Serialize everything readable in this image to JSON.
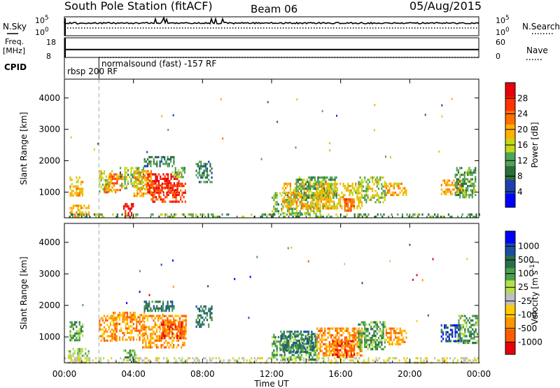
{
  "header": {
    "station": "South Pole Station (fitACF)",
    "beam": "Beam 06",
    "date": "05/Aug/2015"
  },
  "left_labels": {
    "nsky": "N.Sky",
    "freq_line1": "Freq.",
    "freq_line2": "[MHz]",
    "cpid": "CPID"
  },
  "right_labels": {
    "nsearch": "N.Search",
    "nave": "Nave"
  },
  "cpid_labels": {
    "rbsp": "rbsp 200 RF",
    "normalsound": "normalsound (fast) -157 RF"
  },
  "colors": {
    "power_scale": [
      "#0000ff",
      "#1f3fae",
      "#2a6e3a",
      "#4fa35a",
      "#c6d615",
      "#ffb000",
      "#ff7000",
      "#ff3300",
      "#e8000b"
    ],
    "velocity_scale": [
      "#0000ff",
      "#1a4fa0",
      "#2a6e4a",
      "#49a04a",
      "#b5e04a",
      "#bfbfbf",
      "#ffcc00",
      "#ff9500",
      "#ff5a00",
      "#e8000b"
    ]
  },
  "chart_data": [
    {
      "type": "line",
      "panel": "N.Sky / N.Search",
      "y_ticks_left": [
        "10^5",
        "10^0"
      ],
      "y_ticks_right": [
        "10^5",
        "10^0"
      ],
      "yscale": "log"
    },
    {
      "type": "line",
      "panel": "Freq / Nave",
      "y_ticks_left": [
        "18",
        "8"
      ],
      "y_ticks_right": [
        "60",
        "0"
      ],
      "series": [
        {
          "name": "Freq.",
          "x": [
            0,
            24
          ],
          "values": [
            12,
            12
          ]
        },
        {
          "name": "Nave",
          "x": [
            0,
            2,
            24
          ],
          "values": [
            12,
            8,
            8
          ]
        }
      ]
    },
    {
      "type": "heatmap",
      "panel": "power",
      "ylabel": "Slant Range [km]",
      "yticks": [
        1000,
        2000,
        3000,
        4000
      ],
      "ylim": [
        180,
        4600
      ],
      "colorbar_label": "Power [dB]",
      "colorbar_ticks": [
        4,
        8,
        12,
        16,
        20,
        24,
        28
      ],
      "vmin": 0,
      "vmax": 32,
      "patches": [
        {
          "t": [
            0.3,
            1.1
          ],
          "r": [
            900,
            1500
          ],
          "v": 20
        },
        {
          "t": [
            0.3,
            1.4
          ],
          "r": [
            200,
            600
          ],
          "v": 20
        },
        {
          "t": [
            2.0,
            2.8
          ],
          "r": [
            1000,
            1700
          ],
          "v": 14
        },
        {
          "t": [
            2.3,
            3.3
          ],
          "r": [
            1000,
            1600
          ],
          "v": 22
        },
        {
          "t": [
            3.2,
            4.6
          ],
          "r": [
            1100,
            1800
          ],
          "v": 14
        },
        {
          "t": [
            3.4,
            4.0
          ],
          "r": [
            200,
            650
          ],
          "v": 30
        },
        {
          "t": [
            4.0,
            5.0
          ],
          "r": [
            900,
            1700
          ],
          "v": 20
        },
        {
          "t": [
            4.8,
            6.6
          ],
          "r": [
            1000,
            1600
          ],
          "v": 29
        },
        {
          "t": [
            5.0,
            7.0
          ],
          "r": [
            700,
            1300
          ],
          "v": 26
        },
        {
          "t": [
            6.3,
            7.0
          ],
          "r": [
            1500,
            1800
          ],
          "v": 14
        },
        {
          "t": [
            4.6,
            6.3
          ],
          "r": [
            1850,
            2150
          ],
          "v": 10
        },
        {
          "t": [
            7.6,
            8.5
          ],
          "r": [
            1300,
            2000
          ],
          "v": 10
        },
        {
          "t": [
            12.0,
            14.8
          ],
          "r": [
            300,
            1000
          ],
          "v": 14
        },
        {
          "t": [
            12.6,
            15.4
          ],
          "r": [
            500,
            1300
          ],
          "v": 20
        },
        {
          "t": [
            13.4,
            15.8
          ],
          "r": [
            800,
            1500
          ],
          "v": 12
        },
        {
          "t": [
            14.6,
            17.2
          ],
          "r": [
            500,
            1300
          ],
          "v": 18
        },
        {
          "t": [
            16.2,
            16.8
          ],
          "r": [
            400,
            800
          ],
          "v": 25
        },
        {
          "t": [
            17.0,
            18.6
          ],
          "r": [
            700,
            1500
          ],
          "v": 16
        },
        {
          "t": [
            18.6,
            19.8
          ],
          "r": [
            900,
            1300
          ],
          "v": 20
        },
        {
          "t": [
            21.8,
            23.0
          ],
          "r": [
            900,
            1400
          ],
          "v": 20
        },
        {
          "t": [
            22.6,
            23.8
          ],
          "r": [
            800,
            1800
          ],
          "v": 12
        },
        {
          "t": [
            0.0,
            24.0
          ],
          "r": [
            190,
            320
          ],
          "v": 12
        }
      ]
    },
    {
      "type": "heatmap",
      "panel": "velocity",
      "ylabel": "Slant Range [km]",
      "xlabel": "Time UT",
      "xticks": [
        "00:00",
        "04:00",
        "08:00",
        "12:00",
        "16:00",
        "20:00",
        "00:00"
      ],
      "yticks": [
        1000,
        2000,
        3000,
        4000
      ],
      "ylim": [
        180,
        4600
      ],
      "colorbar_label": "Velocity [m s^-1]",
      "colorbar_ticks": [
        "1000",
        "500",
        "100",
        "25",
        "-25",
        "-100",
        "-500",
        "-1000"
      ],
      "patches": [
        {
          "t": [
            0.3,
            1.1
          ],
          "r": [
            900,
            1500
          ],
          "v": 3
        },
        {
          "t": [
            0.2,
            1.4
          ],
          "r": [
            200,
            650
          ],
          "v": 4
        },
        {
          "t": [
            2.0,
            3.0
          ],
          "r": [
            900,
            1700
          ],
          "v": 7
        },
        {
          "t": [
            2.8,
            4.6
          ],
          "r": [
            900,
            1800
          ],
          "v": 7
        },
        {
          "t": [
            3.4,
            4.2
          ],
          "r": [
            200,
            600
          ],
          "v": 3
        },
        {
          "t": [
            4.5,
            7.0
          ],
          "r": [
            700,
            1700
          ],
          "v": 7
        },
        {
          "t": [
            5.5,
            7.0
          ],
          "r": [
            1000,
            1500
          ],
          "v": 8
        },
        {
          "t": [
            4.6,
            6.3
          ],
          "r": [
            1850,
            2150
          ],
          "v": 2
        },
        {
          "t": [
            7.6,
            8.5
          ],
          "r": [
            1300,
            2000
          ],
          "v": 2
        },
        {
          "t": [
            0.0,
            24.0
          ],
          "r": [
            190,
            360
          ],
          "v": 5
        },
        {
          "t": [
            12.0,
            14.6
          ],
          "r": [
            300,
            1100
          ],
          "v": 3
        },
        {
          "t": [
            12.5,
            14.5
          ],
          "r": [
            500,
            1200
          ],
          "v": 2
        },
        {
          "t": [
            14.6,
            17.2
          ],
          "r": [
            400,
            1300
          ],
          "v": 7
        },
        {
          "t": [
            15.5,
            16.8
          ],
          "r": [
            400,
            900
          ],
          "v": 8
        },
        {
          "t": [
            17.0,
            18.6
          ],
          "r": [
            600,
            1500
          ],
          "v": 3
        },
        {
          "t": [
            18.6,
            19.8
          ],
          "r": [
            800,
            1300
          ],
          "v": 7
        },
        {
          "t": [
            21.8,
            23.0
          ],
          "r": [
            900,
            1400
          ],
          "v": 1
        },
        {
          "t": [
            22.8,
            23.9
          ],
          "r": [
            800,
            1700
          ],
          "v": 3
        }
      ]
    }
  ]
}
